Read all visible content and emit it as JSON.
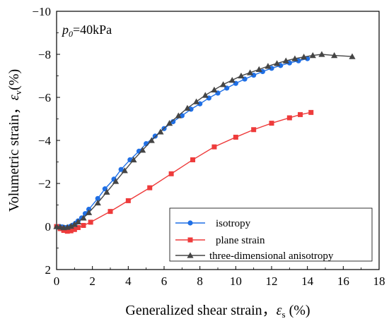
{
  "chart_data": {
    "type": "line",
    "annotation": {
      "var": "p",
      "sub": "0",
      "rest": "=40kPa"
    },
    "xlabel": {
      "text": "Generalized shear strain，",
      "sym": "ε",
      "sub": "s",
      "unit": " (%)"
    },
    "ylabel": {
      "text": "Volumetric strain，",
      "sym": "ε",
      "sub": "v",
      "unit": "(%)"
    },
    "xlim": [
      0,
      18
    ],
    "ylim": [
      2,
      -10
    ],
    "xticks": [
      0,
      2,
      4,
      6,
      8,
      10,
      12,
      14,
      16,
      18
    ],
    "xtick_labels": [
      "0",
      "2",
      "4",
      "6",
      "8",
      "10",
      "12",
      "14",
      "16",
      "18"
    ],
    "yticks": [
      2,
      0,
      -2,
      -4,
      -6,
      -8,
      -10
    ],
    "ytick_labels": [
      "2",
      "0",
      "−2",
      "−4",
      "−6",
      "−8",
      "−10"
    ],
    "grid": false,
    "legend_position": "bottom-right",
    "series": [
      {
        "name": "isotropy",
        "color": "#1f6fe5",
        "marker": "circle",
        "x": [
          0.0,
          0.15,
          0.3,
          0.45,
          0.6,
          0.75,
          0.9,
          1.05,
          1.2,
          1.4,
          1.6,
          1.8,
          2.3,
          2.7,
          3.2,
          3.6,
          4.1,
          4.6,
          5.0,
          5.5,
          6.0,
          6.5,
          7.0,
          7.5,
          8.0,
          8.5,
          9.0,
          9.5,
          10.0,
          10.5,
          11.0,
          11.5,
          12.0,
          12.5,
          13.0,
          13.5,
          14.0
        ],
        "y": [
          0.0,
          0.0,
          0.02,
          0.05,
          0.04,
          0.0,
          -0.06,
          -0.15,
          -0.26,
          -0.4,
          -0.6,
          -0.8,
          -1.3,
          -1.75,
          -2.2,
          -2.65,
          -3.1,
          -3.5,
          -3.85,
          -4.2,
          -4.55,
          -4.87,
          -5.15,
          -5.45,
          -5.7,
          -5.97,
          -6.2,
          -6.43,
          -6.65,
          -6.85,
          -7.03,
          -7.2,
          -7.35,
          -7.48,
          -7.6,
          -7.7,
          -7.8
        ]
      },
      {
        "name": "plane strain",
        "color": "#ee3b3b",
        "marker": "square",
        "x": [
          0.0,
          0.2,
          0.4,
          0.6,
          0.8,
          1.0,
          1.2,
          1.5,
          1.9,
          3.0,
          4.0,
          5.2,
          6.4,
          7.6,
          8.8,
          10.0,
          11.0,
          12.0,
          13.0,
          13.6,
          14.2
        ],
        "y": [
          0.0,
          0.1,
          0.18,
          0.22,
          0.2,
          0.14,
          0.05,
          -0.05,
          -0.2,
          -0.7,
          -1.2,
          -1.8,
          -2.45,
          -3.1,
          -3.7,
          -4.15,
          -4.5,
          -4.8,
          -5.05,
          -5.2,
          -5.3
        ]
      },
      {
        "name": "three-dimensional anisotropy",
        "color": "#454545",
        "marker": "triangle",
        "x": [
          0.0,
          0.2,
          0.4,
          0.6,
          0.8,
          1.0,
          1.2,
          1.5,
          1.8,
          2.3,
          2.8,
          3.3,
          3.8,
          4.3,
          4.8,
          5.3,
          5.8,
          6.3,
          6.8,
          7.3,
          7.8,
          8.3,
          8.8,
          9.3,
          9.8,
          10.3,
          10.8,
          11.3,
          11.8,
          12.3,
          12.8,
          13.3,
          13.8,
          14.3,
          14.8,
          15.5,
          16.5
        ],
        "y": [
          0.0,
          0.02,
          0.05,
          0.03,
          -0.02,
          -0.1,
          -0.22,
          -0.4,
          -0.65,
          -1.1,
          -1.6,
          -2.1,
          -2.6,
          -3.1,
          -3.55,
          -4.0,
          -4.4,
          -4.8,
          -5.15,
          -5.5,
          -5.8,
          -6.1,
          -6.35,
          -6.6,
          -6.8,
          -7.0,
          -7.15,
          -7.3,
          -7.45,
          -7.58,
          -7.7,
          -7.8,
          -7.88,
          -7.95,
          -8.0,
          -7.95,
          -7.9
        ]
      }
    ]
  }
}
